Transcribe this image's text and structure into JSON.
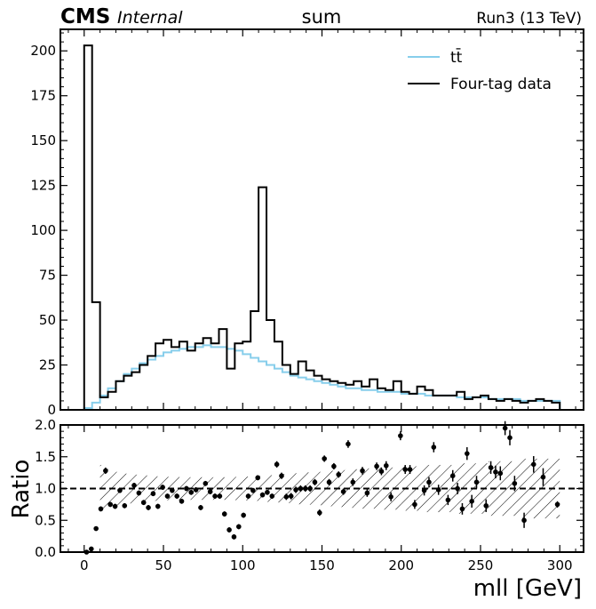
{
  "header": {
    "experiment": "CMS",
    "status": "Internal",
    "title": "sum",
    "run": "Run3 (13 TeV)"
  },
  "chart_data": [
    {
      "type": "histogram",
      "role": "main",
      "xlim": [
        -15,
        315
      ],
      "ylim": [
        0,
        212
      ],
      "yticks": [
        0,
        25,
        50,
        75,
        100,
        125,
        150,
        175,
        200
      ],
      "bin_width": 5,
      "bin_edges_start": 0,
      "legend_position": "top-right",
      "series": [
        {
          "name": "tt̄",
          "color": "#87ceeb",
          "values": [
            1,
            4,
            8,
            12,
            16,
            20,
            23,
            26,
            28,
            30,
            32,
            33,
            34,
            35,
            35,
            36,
            35,
            35,
            34,
            33,
            31,
            29,
            27,
            25,
            23,
            21,
            19,
            18,
            17,
            16,
            15,
            14,
            13,
            12,
            12,
            11,
            11,
            10,
            10,
            10,
            9,
            9,
            9,
            8,
            8,
            8,
            8,
            7,
            7,
            7,
            7,
            6,
            6,
            6,
            6,
            5,
            5,
            5,
            5,
            5
          ]
        },
        {
          "name": "Four-tag data",
          "color": "#000000",
          "values": [
            203,
            60,
            7,
            10,
            16,
            19,
            21,
            25,
            30,
            37,
            39,
            35,
            38,
            33,
            37,
            40,
            37,
            45,
            23,
            37,
            38,
            55,
            124,
            50,
            38,
            25,
            20,
            27,
            22,
            19,
            17,
            16,
            15,
            14,
            16,
            13,
            17,
            12,
            11,
            16,
            10,
            9,
            13,
            11,
            8,
            8,
            8,
            10,
            6,
            7,
            8,
            6,
            5,
            6,
            5,
            4,
            5,
            6,
            5,
            4
          ]
        }
      ]
    },
    {
      "type": "scatter",
      "role": "ratio",
      "ylabel": "Ratio",
      "xlabel": "mll [GeV]",
      "xlim": [
        -15,
        315
      ],
      "ylim": [
        0,
        2
      ],
      "xticks": [
        0,
        50,
        100,
        150,
        200,
        250,
        300
      ],
      "yticks": [
        0.0,
        0.5,
        1.0,
        1.5,
        2.0
      ],
      "reference_line": 1.0,
      "uncertainty_band": "hatched",
      "points": [
        {
          "x": 1.5,
          "y": 0.0,
          "err": 0.0
        },
        {
          "x": 4.5,
          "y": 0.05,
          "err": 0.02
        },
        {
          "x": 7.5,
          "y": 0.37,
          "err": 0.03
        },
        {
          "x": 10.5,
          "y": 0.68,
          "err": 0.04
        },
        {
          "x": 13.5,
          "y": 1.28,
          "err": 0.05
        },
        {
          "x": 16.5,
          "y": 0.75,
          "err": 0.04
        },
        {
          "x": 19.5,
          "y": 0.72,
          "err": 0.04
        },
        {
          "x": 22.5,
          "y": 0.97,
          "err": 0.04
        },
        {
          "x": 25.5,
          "y": 0.73,
          "err": 0.04
        },
        {
          "x": 31.5,
          "y": 1.05,
          "err": 0.04
        },
        {
          "x": 34.5,
          "y": 0.93,
          "err": 0.04
        },
        {
          "x": 37.5,
          "y": 0.78,
          "err": 0.04
        },
        {
          "x": 40.5,
          "y": 0.7,
          "err": 0.04
        },
        {
          "x": 43.5,
          "y": 0.92,
          "err": 0.04
        },
        {
          "x": 46.5,
          "y": 0.72,
          "err": 0.04
        },
        {
          "x": 49.5,
          "y": 1.02,
          "err": 0.04
        },
        {
          "x": 52.5,
          "y": 0.88,
          "err": 0.04
        },
        {
          "x": 55.5,
          "y": 0.97,
          "err": 0.04
        },
        {
          "x": 58.5,
          "y": 0.88,
          "err": 0.04
        },
        {
          "x": 61.5,
          "y": 0.8,
          "err": 0.04
        },
        {
          "x": 64.5,
          "y": 1.0,
          "err": 0.04
        },
        {
          "x": 67.5,
          "y": 0.94,
          "err": 0.04
        },
        {
          "x": 70.5,
          "y": 0.98,
          "err": 0.04
        },
        {
          "x": 73.5,
          "y": 0.7,
          "err": 0.04
        },
        {
          "x": 76.5,
          "y": 1.08,
          "err": 0.04
        },
        {
          "x": 79.5,
          "y": 0.95,
          "err": 0.04
        },
        {
          "x": 82.5,
          "y": 0.88,
          "err": 0.04
        },
        {
          "x": 85.5,
          "y": 0.88,
          "err": 0.04
        },
        {
          "x": 88.5,
          "y": 0.6,
          "err": 0.04
        },
        {
          "x": 91.5,
          "y": 0.35,
          "err": 0.04
        },
        {
          "x": 94.5,
          "y": 0.24,
          "err": 0.04
        },
        {
          "x": 97.5,
          "y": 0.4,
          "err": 0.04
        },
        {
          "x": 100.5,
          "y": 0.58,
          "err": 0.04
        },
        {
          "x": 103.5,
          "y": 0.88,
          "err": 0.04
        },
        {
          "x": 106.5,
          "y": 0.97,
          "err": 0.04
        },
        {
          "x": 109.5,
          "y": 1.17,
          "err": 0.04
        },
        {
          "x": 112.5,
          "y": 0.9,
          "err": 0.04
        },
        {
          "x": 115.5,
          "y": 0.94,
          "err": 0.04
        },
        {
          "x": 118.5,
          "y": 0.88,
          "err": 0.04
        },
        {
          "x": 121.5,
          "y": 1.38,
          "err": 0.05
        },
        {
          "x": 124.5,
          "y": 1.2,
          "err": 0.05
        },
        {
          "x": 127.5,
          "y": 0.87,
          "err": 0.05
        },
        {
          "x": 130.5,
          "y": 0.88,
          "err": 0.05
        },
        {
          "x": 133.5,
          "y": 0.98,
          "err": 0.05
        },
        {
          "x": 136.5,
          "y": 1.0,
          "err": 0.05
        },
        {
          "x": 139.5,
          "y": 1.0,
          "err": 0.05
        },
        {
          "x": 142.5,
          "y": 1.0,
          "err": 0.05
        },
        {
          "x": 145.5,
          "y": 1.1,
          "err": 0.05
        },
        {
          "x": 148.5,
          "y": 0.62,
          "err": 0.05
        },
        {
          "x": 151.5,
          "y": 1.47,
          "err": 0.05
        },
        {
          "x": 154.5,
          "y": 1.1,
          "err": 0.05
        },
        {
          "x": 157.5,
          "y": 1.35,
          "err": 0.05
        },
        {
          "x": 160.5,
          "y": 1.22,
          "err": 0.05
        },
        {
          "x": 163.5,
          "y": 0.95,
          "err": 0.05
        },
        {
          "x": 166.5,
          "y": 1.7,
          "err": 0.06
        },
        {
          "x": 169.5,
          "y": 1.1,
          "err": 0.06
        },
        {
          "x": 175.5,
          "y": 1.28,
          "err": 0.06
        },
        {
          "x": 178.5,
          "y": 0.93,
          "err": 0.06
        },
        {
          "x": 184.5,
          "y": 1.35,
          "err": 0.06
        },
        {
          "x": 187.5,
          "y": 1.27,
          "err": 0.06
        },
        {
          "x": 190.5,
          "y": 1.36,
          "err": 0.07
        },
        {
          "x": 193.5,
          "y": 0.87,
          "err": 0.07
        },
        {
          "x": 199.5,
          "y": 1.83,
          "err": 0.07
        },
        {
          "x": 202.5,
          "y": 1.3,
          "err": 0.07
        },
        {
          "x": 205.5,
          "y": 1.3,
          "err": 0.07
        },
        {
          "x": 208.5,
          "y": 0.75,
          "err": 0.07
        },
        {
          "x": 214.5,
          "y": 0.97,
          "err": 0.08
        },
        {
          "x": 217.5,
          "y": 1.1,
          "err": 0.08
        },
        {
          "x": 220.5,
          "y": 1.65,
          "err": 0.08
        },
        {
          "x": 223.5,
          "y": 0.98,
          "err": 0.08
        },
        {
          "x": 229.5,
          "y": 0.82,
          "err": 0.08
        },
        {
          "x": 232.5,
          "y": 1.2,
          "err": 0.09
        },
        {
          "x": 235.5,
          "y": 1.0,
          "err": 0.09
        },
        {
          "x": 238.5,
          "y": 0.68,
          "err": 0.09
        },
        {
          "x": 241.5,
          "y": 1.55,
          "err": 0.1
        },
        {
          "x": 244.5,
          "y": 0.8,
          "err": 0.1
        },
        {
          "x": 247.5,
          "y": 1.1,
          "err": 0.1
        },
        {
          "x": 253.5,
          "y": 0.73,
          "err": 0.1
        },
        {
          "x": 256.5,
          "y": 1.33,
          "err": 0.1
        },
        {
          "x": 259.5,
          "y": 1.26,
          "err": 0.1
        },
        {
          "x": 262.5,
          "y": 1.24,
          "err": 0.11
        },
        {
          "x": 265.5,
          "y": 1.95,
          "err": 0.11
        },
        {
          "x": 268.5,
          "y": 1.8,
          "err": 0.12
        },
        {
          "x": 271.5,
          "y": 1.08,
          "err": 0.12
        },
        {
          "x": 277.5,
          "y": 0.5,
          "err": 0.12
        },
        {
          "x": 283.5,
          "y": 1.38,
          "err": 0.13
        },
        {
          "x": 289.5,
          "y": 1.18,
          "err": 0.14
        },
        {
          "x": 298.5,
          "y": 0.75,
          "err": 0.05
        }
      ]
    }
  ]
}
